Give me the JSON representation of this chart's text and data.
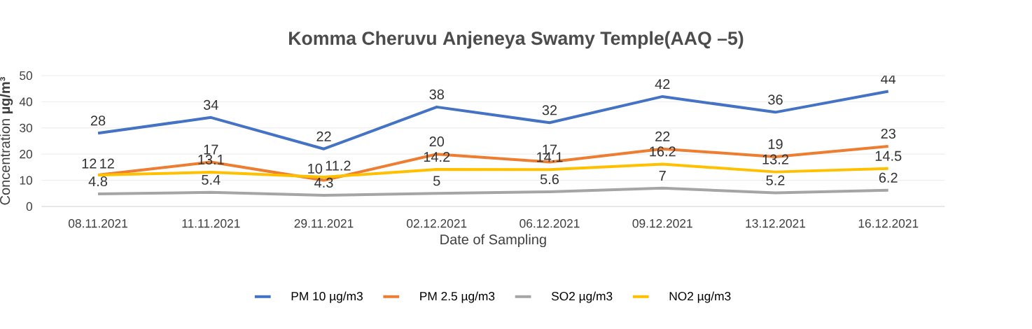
{
  "chart_data": {
    "type": "line",
    "title": "Komma Cheruvu  Anjeneya Swamy Temple(AAQ –5)",
    "xlabel": "Date of Sampling",
    "ylabel": "Concentration **µg/m³**",
    "categories": [
      "08.11.2021",
      "11.11.2021",
      "29.11.2021",
      "02.12.2021",
      "06.12.2021",
      "09.12.2021",
      "13.12.2021",
      "16.12.2021"
    ],
    "series": [
      {
        "name": "PM 10 µg/m3",
        "color": "#4472c4",
        "values": [
          28,
          34,
          22,
          38,
          32,
          42,
          36,
          44
        ]
      },
      {
        "name": "PM 2.5  µg/m3",
        "color": "#ed7d31",
        "values": [
          12,
          17,
          10,
          20,
          17,
          22,
          19,
          23
        ]
      },
      {
        "name": "SO2 µg/m3",
        "color": "#a5a5a5",
        "values": [
          4.8,
          5.4,
          4.3,
          5,
          5.6,
          7,
          5.2,
          6.2
        ]
      },
      {
        "name": "NO2 µg/m3",
        "color": "#ffc000",
        "values": [
          12,
          13.1,
          11.2,
          14.2,
          14.1,
          16.2,
          13.2,
          14.5
        ]
      }
    ],
    "ylim": [
      0,
      50
    ],
    "yticks": [
      0,
      10,
      20,
      30,
      40,
      50
    ],
    "grid": "y",
    "legend": "bottom",
    "data_labels": true,
    "marker": "none",
    "line_style": "solid"
  }
}
